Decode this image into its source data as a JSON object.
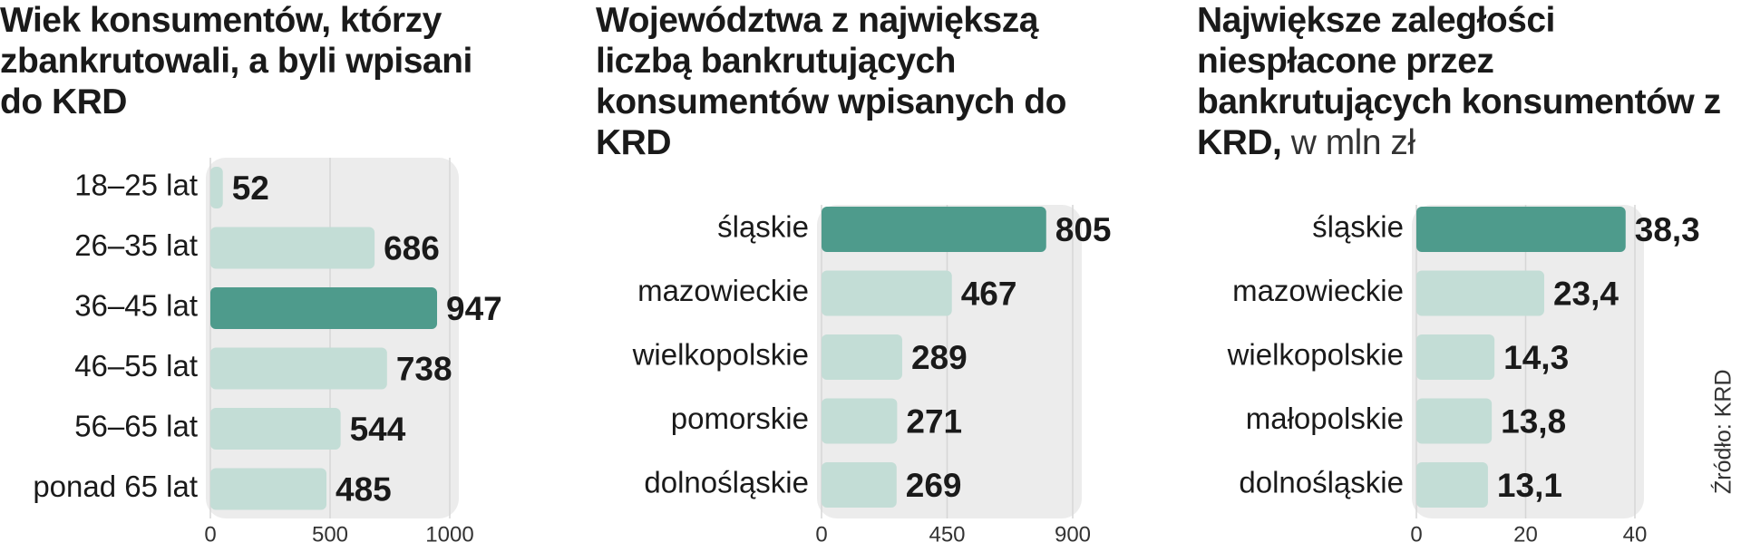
{
  "chart_data": [
    {
      "type": "bar",
      "orientation": "horizontal",
      "title": "Wiek konsumentów, którzy zbankrutowali, a byli wpisani do KRD",
      "categories": [
        "18–25 lat",
        "26–35 lat",
        "36–45 lat",
        "46–55 lat",
        "56–65 lat",
        "ponad 65 lat"
      ],
      "values": [
        52,
        686,
        947,
        738,
        544,
        485
      ],
      "colors": [
        "#c3ddd6",
        "#c3ddd6",
        "#4e9b8c",
        "#c3ddd6",
        "#c3ddd6",
        "#c3ddd6"
      ],
      "xlim": [
        0,
        1000
      ],
      "xticks": [
        0,
        500,
        1000
      ],
      "grid": true
    },
    {
      "type": "bar",
      "orientation": "horizontal",
      "title": "Województwa z największą liczbą bankrutujących konsumentów wpisanych do KRD",
      "categories": [
        "śląskie",
        "mazowieckie",
        "wielkopolskie",
        "pomorskie",
        "dolnośląskie"
      ],
      "values": [
        805,
        467,
        289,
        271,
        269
      ],
      "colors": [
        "#4e9b8c",
        "#c3ddd6",
        "#c3ddd6",
        "#c3ddd6",
        "#c3ddd6"
      ],
      "xlim": [
        0,
        900
      ],
      "xticks": [
        0,
        450,
        900
      ],
      "grid": true
    },
    {
      "type": "bar",
      "orientation": "horizontal",
      "title": "Największe zaległości niespłacone przez bankrutujących konsumentów z KRD,",
      "subtitle": "w mln zł",
      "categories": [
        "śląskie",
        "mazowieckie",
        "wielkopolskie",
        "małopolskie",
        "dolnośląskie"
      ],
      "values": [
        38.3,
        23.4,
        14.3,
        13.8,
        13.1
      ],
      "value_labels": [
        "38,3",
        "23,4",
        "14,3",
        "13,8",
        "13,1"
      ],
      "colors": [
        "#4e9b8c",
        "#c3ddd6",
        "#c3ddd6",
        "#c3ddd6",
        "#c3ddd6"
      ],
      "xlim": [
        0,
        40
      ],
      "xticks": [
        0,
        20,
        40
      ],
      "grid": true
    }
  ],
  "source": "Źródło: KRD"
}
